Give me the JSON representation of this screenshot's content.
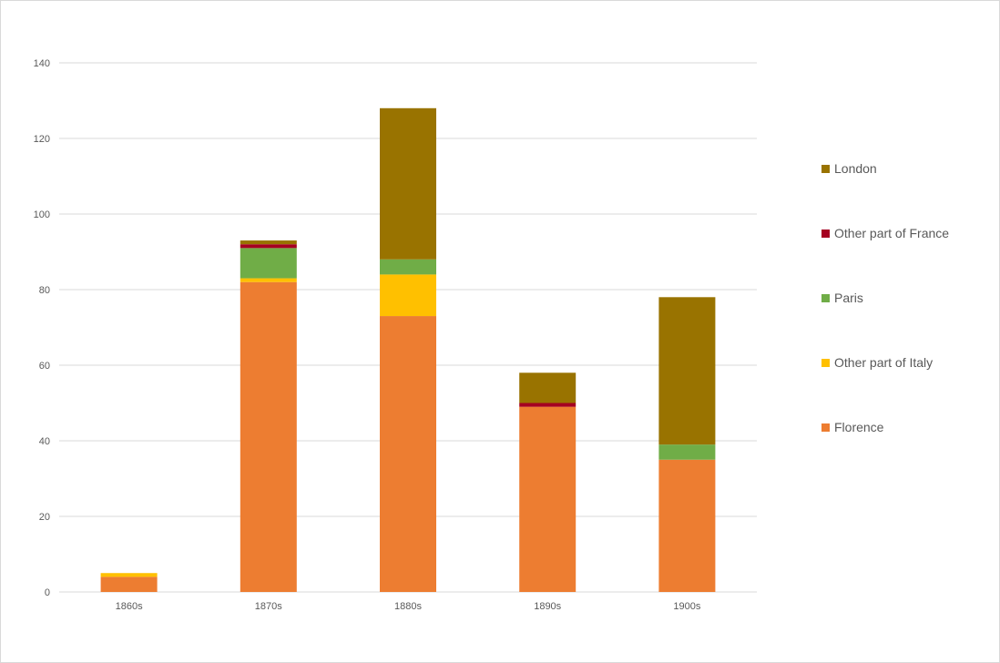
{
  "chart_data": {
    "type": "bar",
    "stacked": true,
    "categories": [
      "1860s",
      "1870s",
      "1880s",
      "1890s",
      "1900s"
    ],
    "series": [
      {
        "name": "Florence",
        "color": "#ED7D31",
        "values": [
          4,
          82,
          73,
          49,
          35
        ]
      },
      {
        "name": "Other part of Italy",
        "color": "#FFC000",
        "values": [
          1,
          1,
          11,
          0,
          0
        ]
      },
      {
        "name": "Paris",
        "color": "#70AD47",
        "values": [
          0,
          8,
          4,
          0,
          4
        ]
      },
      {
        "name": "Other part of France",
        "color": "#A50021",
        "values": [
          0,
          1,
          0,
          1,
          0
        ]
      },
      {
        "name": "London",
        "color": "#997300",
        "values": [
          0,
          1,
          40,
          8,
          39
        ]
      }
    ],
    "yticks": [
      "0",
      "20",
      "40",
      "60",
      "80",
      "100",
      "120",
      "140"
    ],
    "ylim": [
      0,
      140
    ],
    "grid": true,
    "legend_position": "right"
  }
}
